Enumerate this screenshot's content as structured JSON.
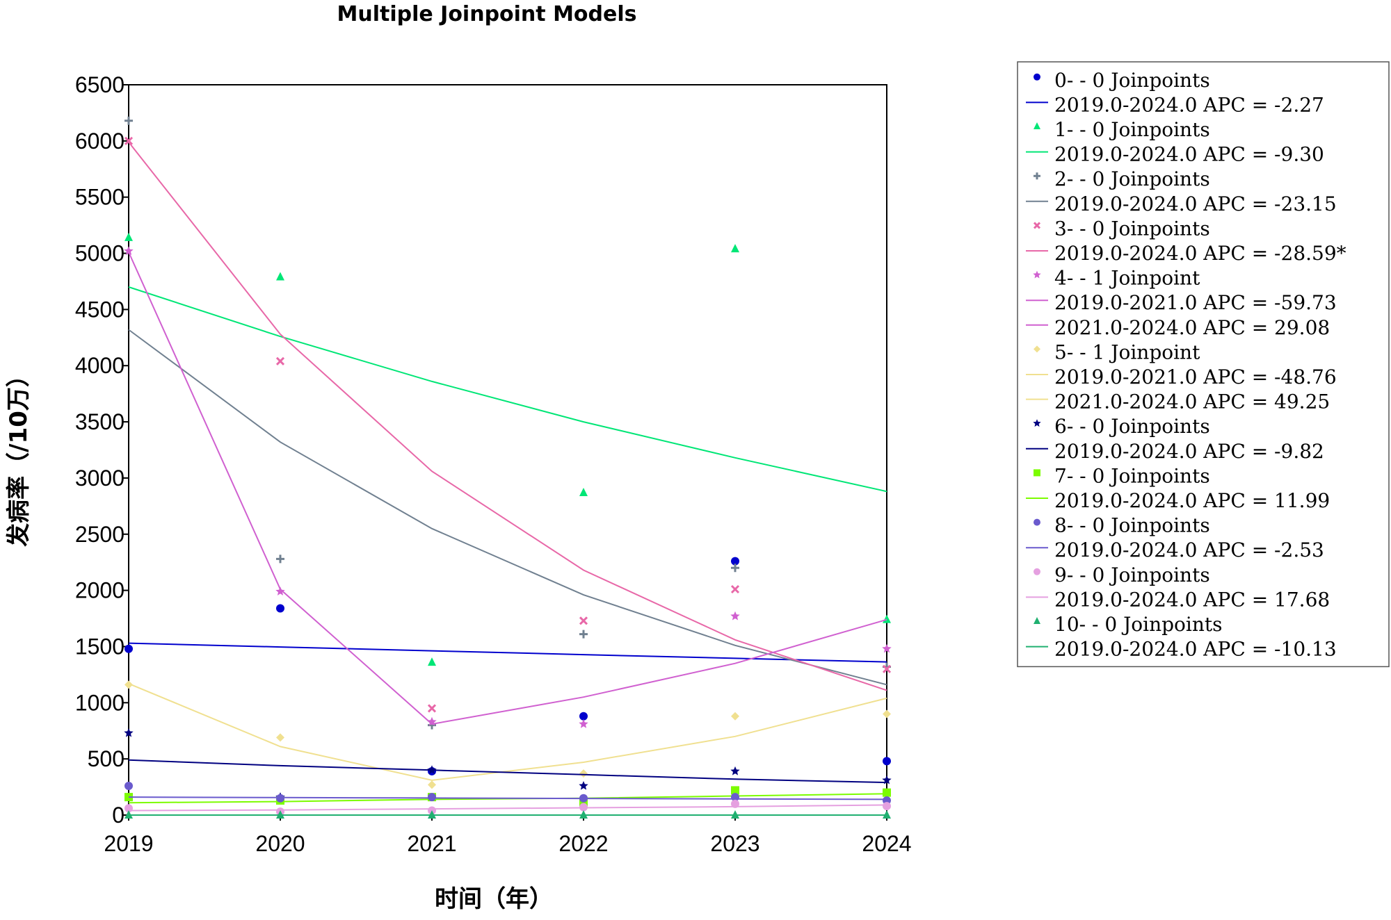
{
  "chart_data": {
    "type": "line",
    "title": "Multiple Joinpoint Models",
    "xlabel": "时间（年）",
    "ylabel": "发病率（/10万）",
    "x": [
      2019,
      2020,
      2021,
      2022,
      2023,
      2024
    ],
    "xlim": [
      2019,
      2024
    ],
    "ylim": [
      0,
      6500
    ],
    "yticks": [
      0,
      500,
      1000,
      1500,
      2000,
      2500,
      3000,
      3500,
      4000,
      4500,
      5000,
      5500,
      6000,
      6500
    ],
    "grid": false,
    "legend_position": "right",
    "series": [
      {
        "name": "0",
        "legend": "0- - 0 Joinpoints",
        "segments": [
          "2019.0-2024.0 APC  = -2.27"
        ],
        "color": "#0000cd",
        "marker": "circle",
        "observed": [
          1480,
          1840,
          390,
          880,
          2260,
          480
        ],
        "fitted": [
          1530,
          1496,
          1462,
          1428,
          1395,
          1363
        ]
      },
      {
        "name": "1",
        "legend": "1- - 0 Joinpoints",
        "segments": [
          "2019.0-2024.0 APC  = -9.30"
        ],
        "color": "#00e676",
        "marker": "triangle",
        "observed": [
          5140,
          4790,
          1360,
          2870,
          5040,
          1740
        ],
        "fitted": [
          4700,
          4260,
          3860,
          3500,
          3180,
          2880
        ]
      },
      {
        "name": "2",
        "legend": "2- - 0 Joinpoints",
        "segments": [
          "2019.0-2024.0 APC  = -23.15"
        ],
        "color": "#708090",
        "marker": "plus",
        "observed": [
          6180,
          2280,
          800,
          1610,
          2200,
          1320
        ],
        "fitted": [
          4320,
          3320,
          2550,
          1960,
          1510,
          1160
        ]
      },
      {
        "name": "3",
        "legend": "3- - 0 Joinpoints",
        "segments": [
          "2019.0-2024.0 APC  = -28.59*"
        ],
        "color": "#e868a8",
        "marker": "x",
        "observed": [
          6000,
          4040,
          950,
          1730,
          2010,
          1300
        ],
        "fitted": [
          5990,
          4280,
          3060,
          2180,
          1560,
          1110
        ]
      },
      {
        "name": "4",
        "legend": "4- - 1 Joinpoint",
        "segments": [
          "2019.0-2021.0 APC  = -59.73",
          "2021.0-2024.0 APC  =  29.08"
        ],
        "color": "#d060d0",
        "marker": "star",
        "observed": [
          5020,
          1990,
          830,
          810,
          1770,
          1480
        ],
        "fitted": [
          5010,
          2010,
          810,
          1050,
          1350,
          1740
        ]
      },
      {
        "name": "5",
        "legend": "5- - 1 Joinpoint",
        "segments": [
          "2019.0-2021.0 APC  = -48.76",
          "2021.0-2024.0 APC  =  49.25"
        ],
        "color": "#f0e090",
        "marker": "diamond",
        "observed": [
          1160,
          690,
          270,
          370,
          880,
          900
        ],
        "fitted": [
          1170,
          610,
          310,
          470,
          700,
          1040
        ]
      },
      {
        "name": "6",
        "legend": "6- - 0 Joinpoints",
        "segments": [
          "2019.0-2024.0 APC  = -9.82"
        ],
        "color": "#000080",
        "marker": "star",
        "observed": [
          730,
          160,
          400,
          260,
          390,
          310
        ],
        "fitted": [
          490,
          440,
          400,
          360,
          320,
          290
        ]
      },
      {
        "name": "7",
        "legend": "7- - 0 Joinpoints",
        "segments": [
          "2019.0-2024.0 APC  = 11.99"
        ],
        "color": "#7cfc00",
        "marker": "square",
        "observed": [
          160,
          130,
          160,
          110,
          220,
          200
        ],
        "fitted": [
          110,
          120,
          140,
          150,
          170,
          190
        ]
      },
      {
        "name": "8",
        "legend": "8- - 0 Joinpoints",
        "segments": [
          "2019.0-2024.0 APC  = -2.53"
        ],
        "color": "#6a5acd",
        "marker": "circle",
        "observed": [
          260,
          150,
          160,
          150,
          160,
          130
        ],
        "fitted": [
          160,
          156,
          152,
          148,
          144,
          140
        ]
      },
      {
        "name": "9",
        "legend": "9- - 0 Joinpoints",
        "segments": [
          "2019.0-2024.0 APC  = 17.68"
        ],
        "color": "#e5a0e0",
        "marker": "circle",
        "observed": [
          60,
          30,
          40,
          70,
          100,
          80
        ],
        "fitted": [
          40,
          45,
          55,
          65,
          75,
          90
        ]
      },
      {
        "name": "10",
        "legend": "10- - 0 Joinpoints",
        "segments": [
          "2019.0-2024.0 APC  = -10.13"
        ],
        "color": "#20b070",
        "marker": "triangle",
        "observed": [
          0,
          0,
          0,
          0,
          0,
          0
        ],
        "fitted": [
          0,
          0,
          0,
          0,
          0,
          0
        ]
      }
    ]
  }
}
